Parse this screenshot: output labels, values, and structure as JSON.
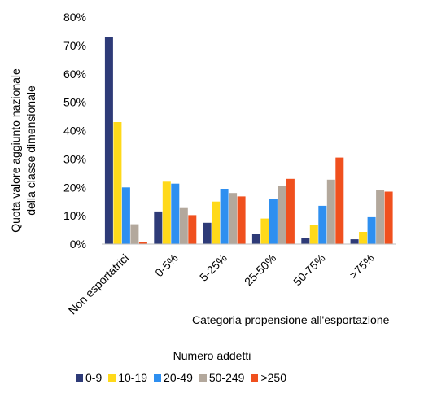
{
  "chart_data": {
    "type": "bar",
    "ylabel_line1": "Quota valore aggiunto nazionale",
    "ylabel_line2": "della classe dimensionale",
    "xlabel": "Categoria propensione all'esportazione",
    "ylim": [
      0,
      80
    ],
    "yticks": [
      "0%",
      "10%",
      "20%",
      "30%",
      "40%",
      "50%",
      "60%",
      "70%",
      "80%"
    ],
    "grid": false,
    "legend_position": "bottom",
    "legend_title": "Numero addetti",
    "categories": [
      "Non esportatrici",
      "0-5%",
      "5-25%",
      "25-50%",
      "50-75%",
      ">75%"
    ],
    "series": [
      {
        "name": "0-9",
        "color": "#2e3b78",
        "values": [
          73,
          11.5,
          7.5,
          3.5,
          2.3,
          1.7
        ]
      },
      {
        "name": "10-19",
        "color": "#ffd91a",
        "values": [
          43,
          22,
          15,
          9,
          6.7,
          4.3
        ]
      },
      {
        "name": "20-49",
        "color": "#2e8ff0",
        "values": [
          20,
          21.3,
          19.5,
          16,
          13.5,
          9.5
        ]
      },
      {
        "name": "50-249",
        "color": "#b3a89c",
        "values": [
          7,
          12.7,
          18,
          20.5,
          22.7,
          19
        ]
      },
      {
        "name": ">250",
        "color": "#f0501e",
        "values": [
          0.8,
          10.2,
          16.8,
          23,
          30.5,
          18.5
        ]
      }
    ]
  }
}
